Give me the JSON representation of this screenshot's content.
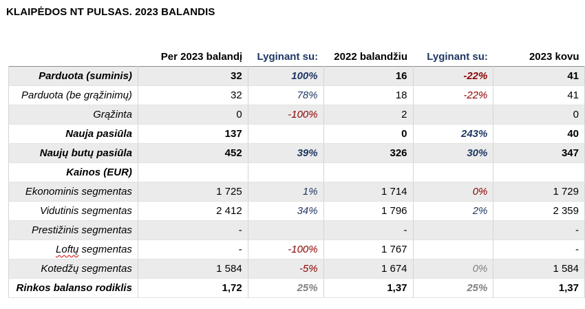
{
  "title": "KLAIPĖDOS NT PULSAS. 2023 BALANDIS",
  "headers": [
    "Per 2023 balandį",
    "Lyginant su:",
    "2022 balandžiu",
    "Lyginant su:",
    "2023 kovu"
  ],
  "rows": [
    {
      "label": "Parduota (suminis)",
      "v1": "32",
      "p1": "100%",
      "v2": "16",
      "p2": "-22%",
      "v3": "41"
    },
    {
      "label": "Parduota (be grąžinimų)",
      "v1": "32",
      "p1": "78%",
      "v2": "18",
      "p2": "-22%",
      "v3": "41"
    },
    {
      "label": "Grąžinta",
      "v1": "0",
      "p1": "-100%",
      "v2": "2",
      "p2": "",
      "v3": "0"
    },
    {
      "label": "Nauja pasiūla",
      "v1": "137",
      "p1": "",
      "v2": "0",
      "p2": "243%",
      "v3": "40"
    },
    {
      "label": "Naujų butų pasiūla",
      "v1": "452",
      "p1": "39%",
      "v2": "326",
      "p2": "30%",
      "v3": "347"
    },
    {
      "label": "Kainos (EUR)",
      "v1": "",
      "p1": "",
      "v2": "",
      "p2": "",
      "v3": ""
    },
    {
      "label": "Ekonominis segmentas",
      "v1": "1 725",
      "p1": "1%",
      "v2": "1 714",
      "p2": "0%",
      "v3": "1 729"
    },
    {
      "label": "Vidutinis segmentas",
      "v1": "2 412",
      "p1": "34%",
      "v2": "1 796",
      "p2": "2%",
      "v3": "2 359"
    },
    {
      "label": "Prestižinis segmentas",
      "v1": "-",
      "p1": "",
      "v2": "-",
      "p2": "",
      "v3": "-"
    },
    {
      "label_prefix": "Loftų",
      "label_suffix": " segmentas",
      "v1": "-",
      "p1": "-100%",
      "v2": "1 767",
      "p2": "",
      "v3": "-"
    },
    {
      "label": "Kotedžų segmentas",
      "v1": "1 584",
      "p1": "-5%",
      "v2": "1 674",
      "p2": "0%",
      "v3": "1 584"
    },
    {
      "label": "Rinkos balanso rodiklis",
      "v1": "1,72",
      "p1": "25%",
      "v2": "1,37",
      "p2": "25%",
      "v3": "1,37"
    }
  ],
  "colors": {
    "positive": "#1f3864",
    "negative": "#8b0000",
    "neutral": "#7f7f7f",
    "shade": "#ebebeb"
  }
}
